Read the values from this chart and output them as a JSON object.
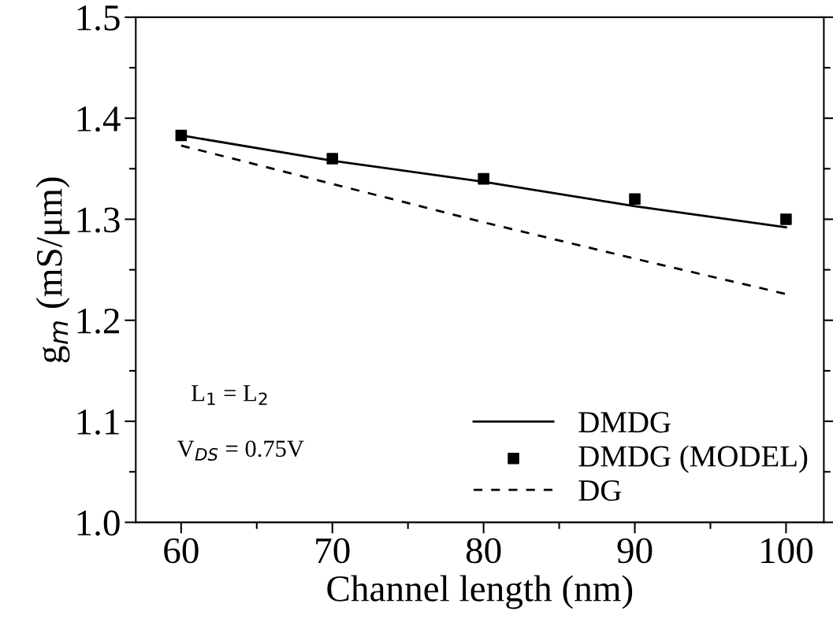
{
  "chart_data": {
    "type": "line",
    "xlabel": "Channel length (nm)",
    "ylabel": "g$_{m}$ (mS/μm)",
    "x": [
      60,
      70,
      80,
      90,
      100
    ],
    "series": [
      {
        "name": "DMDG",
        "color": "#000000",
        "line_style": "solid",
        "values": [
          1.383,
          1.358,
          1.337,
          1.313,
          1.292
        ]
      },
      {
        "name": "DMDG (MODEL)",
        "color": "#000000",
        "type": "scatter",
        "marker": "square",
        "values": [
          1.383,
          1.36,
          1.34,
          1.32,
          1.3
        ]
      },
      {
        "name": "DG",
        "color": "#000000",
        "line_style": "dashed",
        "values": [
          1.373,
          1.335,
          1.297,
          1.261,
          1.226
        ]
      }
    ],
    "xlim": [
      57,
      102.5
    ],
    "xticks": [
      60,
      70,
      80,
      90,
      100
    ],
    "ylim": [
      1.0,
      1.5
    ],
    "yticks": [
      {
        "value": 1.0,
        "label": "1.0"
      },
      1.1,
      1.2,
      1.3,
      1.4,
      1.5
    ],
    "annotations": [
      {
        "text": "L$_{1}$ = L$_{2}$"
      },
      {
        "text": "V$_{DS}$ = 0.75V"
      }
    ],
    "legend": "bottom right",
    "grid": false
  }
}
